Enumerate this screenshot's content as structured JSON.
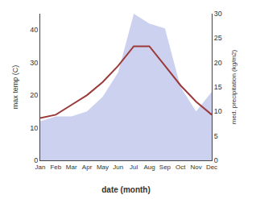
{
  "chart_data": {
    "type": "line",
    "xlabel": "date (month)",
    "ylabel": "max temp (C)",
    "y2label": "med. precipitation (kg/m2)",
    "categories": [
      "Jan",
      "Feb",
      "Mar",
      "Apr",
      "May",
      "Jun",
      "Jul",
      "Aug",
      "Sep",
      "Oct",
      "Nov",
      "Dec"
    ],
    "series": [
      {
        "type": "area",
        "axis": "y2",
        "color": "#b0b8e8",
        "values": [
          8,
          9,
          9,
          10,
          13,
          18,
          30,
          28,
          27,
          15,
          10,
          14
        ]
      },
      {
        "type": "line",
        "color": "#9b3a3a",
        "values": [
          13,
          14,
          17,
          20,
          24,
          29,
          35,
          35,
          29,
          23,
          18,
          14
        ]
      }
    ],
    "ylim": [
      0,
      45
    ],
    "yticks": [
      0,
      10,
      20,
      30,
      40
    ],
    "y2lim": [
      0,
      30
    ],
    "y2ticks": [
      0,
      5,
      10,
      15,
      20,
      25,
      30
    ],
    "grid": false
  }
}
